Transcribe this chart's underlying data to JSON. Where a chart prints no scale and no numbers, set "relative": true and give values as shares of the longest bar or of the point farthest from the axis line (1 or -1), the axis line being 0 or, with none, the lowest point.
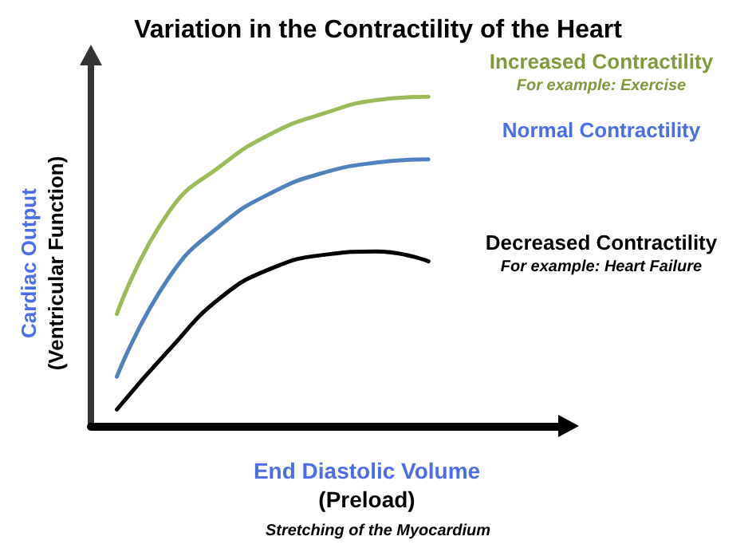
{
  "chart_data": {
    "type": "line",
    "relative": true,
    "title": "Variation in the Contractility of the Heart",
    "xlabel": "End Diastolic Volume\n(Preload)",
    "ylabel": "Cardiac Output\n(Ventricular Function)",
    "annotations": [
      "For example: Exercise",
      "For example: Heart Failure",
      "Stretching of the Myocardium"
    ],
    "categories": [
      null,
      null,
      null,
      null,
      null,
      null,
      null,
      null,
      null
    ],
    "series": [
      {
        "name": "Increased Contractility",
        "color": "#9bbb59",
        "values": [
          0.34,
          0.65,
          0.79,
          0.89,
          0.95,
          0.99,
          1.0,
          null,
          null
        ]
      },
      {
        "name": "Normal Contractility",
        "color": "#4f81bd",
        "values": [
          0.15,
          0.45,
          0.61,
          0.71,
          0.77,
          0.8,
          0.81,
          null,
          null
        ]
      },
      {
        "name": "Decreased Contractility",
        "color": "#000000",
        "values": [
          0.05,
          0.23,
          0.39,
          0.48,
          0.52,
          0.53,
          0.5,
          null,
          null
        ]
      }
    ],
    "marker": "none",
    "grid": false,
    "legend": false
  }
}
